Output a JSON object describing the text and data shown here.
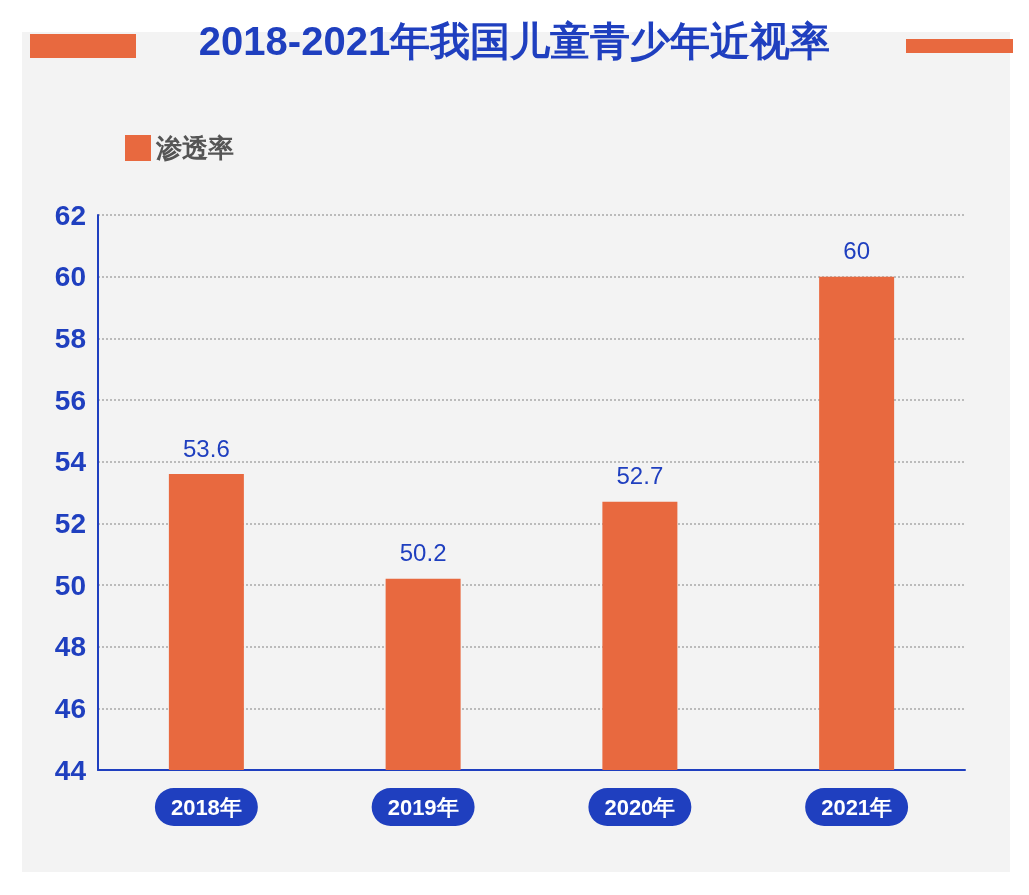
{
  "chart_data": {
    "type": "bar",
    "title": "2018-2021年我国儿童青少年近视率",
    "categories": [
      "2018年",
      "2019年",
      "2020年",
      "2021年"
    ],
    "series": [
      {
        "name": "渗透率",
        "color": "#e8693f",
        "values": [
          53.6,
          50.2,
          52.7,
          60
        ]
      }
    ],
    "ylim": [
      44,
      62
    ],
    "yticks": [
      44,
      46,
      48,
      50,
      52,
      54,
      56,
      58,
      60,
      62
    ],
    "grid": "y",
    "legend": "top left",
    "data_labels": true
  }
}
